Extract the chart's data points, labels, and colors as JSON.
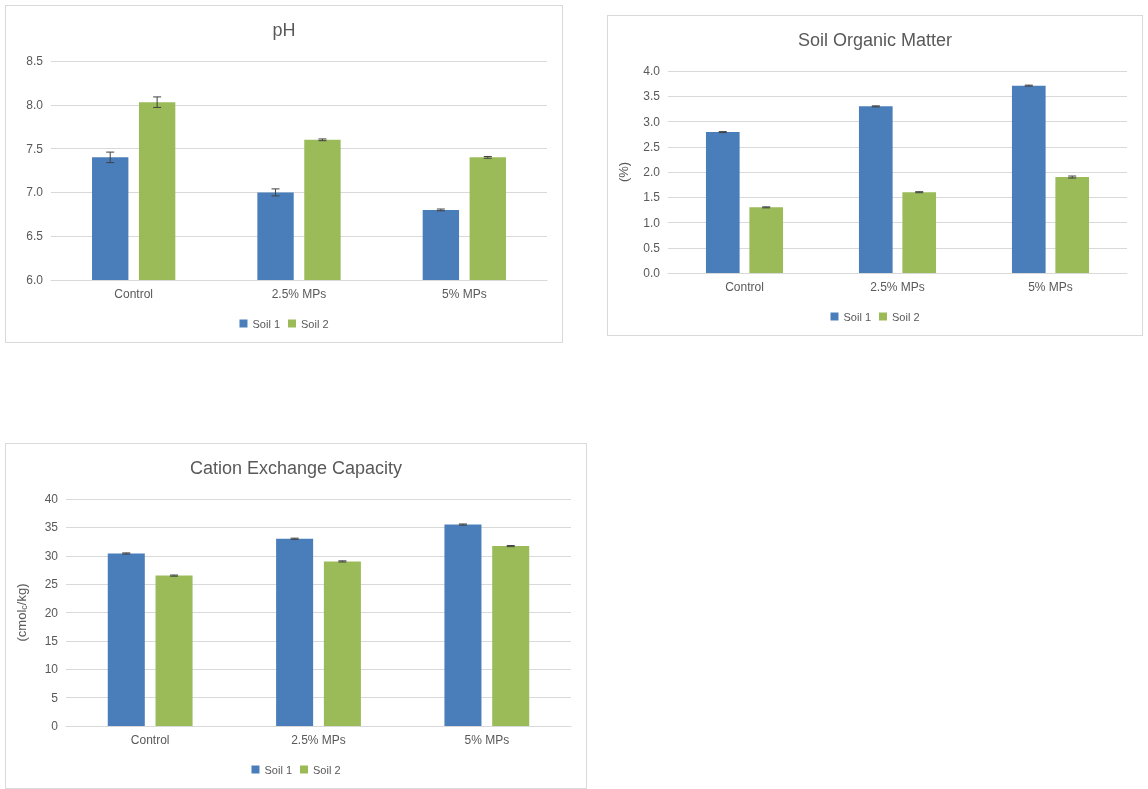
{
  "chart_data": [
    {
      "type": "bar",
      "title": "pH",
      "categories": [
        "Control",
        "2.5% MPs",
        "5% MPs"
      ],
      "series": [
        {
          "name": "Soil 1",
          "color": "#4a7ebb",
          "values": [
            7.4,
            7.0,
            6.8
          ],
          "errors": [
            0.06,
            0.04,
            0.01
          ]
        },
        {
          "name": "Soil 2",
          "color": "#9bbb59",
          "values": [
            8.03,
            7.6,
            7.4
          ],
          "errors": [
            0.06,
            0.01,
            0.01
          ]
        }
      ],
      "ylim": [
        6.0,
        8.5
      ],
      "yticks": [
        {
          "value": 6,
          "label": "6.0"
        },
        {
          "value": 6.5,
          "label": "6.5"
        },
        {
          "value": 7,
          "label": "7.0"
        },
        {
          "value": 7.5,
          "label": "7.5"
        },
        {
          "value": 8,
          "label": "8.0"
        },
        {
          "value": 8.5,
          "label": "8.5"
        }
      ],
      "grid": "y",
      "legend": "bottom"
    },
    {
      "type": "bar",
      "title": "Soil Organic Matter",
      "ylabel": "(%)",
      "categories": [
        "Control",
        "2.5% MPs",
        "5% MPs"
      ],
      "series": [
        {
          "name": "Soil 1",
          "color": "#4a7ebb",
          "values": [
            2.79,
            3.3,
            3.71
          ],
          "errors": [
            0.01,
            0.01,
            0.01
          ]
        },
        {
          "name": "Soil 2",
          "color": "#9bbb59",
          "values": [
            1.3,
            1.6,
            1.9
          ],
          "errors": [
            0.01,
            0.01,
            0.02
          ]
        }
      ],
      "ylim": [
        0,
        4
      ],
      "yticks": [
        {
          "value": 0,
          "label": "0.0"
        },
        {
          "value": 0.5,
          "label": "0.5"
        },
        {
          "value": 1,
          "label": "1.0"
        },
        {
          "value": 1.5,
          "label": "1.5"
        },
        {
          "value": 2,
          "label": "2.0"
        },
        {
          "value": 2.5,
          "label": "2.5"
        },
        {
          "value": 3,
          "label": "3.0"
        },
        {
          "value": 3.5,
          "label": "3.5"
        },
        {
          "value": 4,
          "label": "4.0"
        }
      ],
      "grid": "y",
      "legend": "bottom"
    },
    {
      "type": "bar",
      "title": "Cation Exchange Capacity",
      "ylabel": "(cmol$_{c}$/kg)",
      "categories": [
        "Control",
        "2.5% MPs",
        "5% MPs"
      ],
      "series": [
        {
          "name": "Soil 1",
          "color": "#4a7ebb",
          "values": [
            30.4,
            33.0,
            35.5
          ],
          "errors": [
            0.1,
            0.1,
            0.1
          ]
        },
        {
          "name": "Soil 2",
          "color": "#9bbb59",
          "values": [
            26.5,
            29.0,
            31.7
          ],
          "errors": [
            0.1,
            0.1,
            0.1
          ]
        }
      ],
      "ylim": [
        0,
        40
      ],
      "yticks": [
        0,
        5,
        10,
        15,
        20,
        25,
        30,
        35,
        40
      ],
      "grid": "y",
      "legend": "bottom"
    }
  ]
}
